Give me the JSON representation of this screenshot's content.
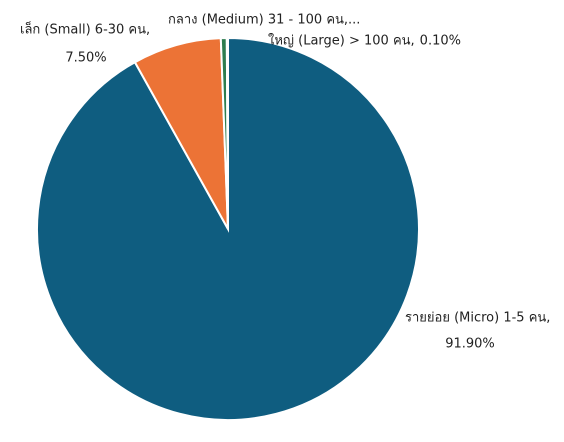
{
  "chart_data": {
    "type": "pie",
    "categories": [
      "รายย่อย (Micro) 1-5 คน,",
      "เล็ก (Small) 6-30 คน,",
      "กลาง (Medium) 31 - 100 คน,...",
      "ใหญ่ (Large) > 100 คน,"
    ],
    "values": [
      91.9,
      7.5,
      0.5,
      0.1
    ],
    "value_labels": [
      "91.90%",
      "7.50%",
      null,
      "0.10%"
    ],
    "colors": [
      "#0f5d80",
      "#ec7336",
      "#2e7d4f",
      "#0b4f5c"
    ]
  }
}
